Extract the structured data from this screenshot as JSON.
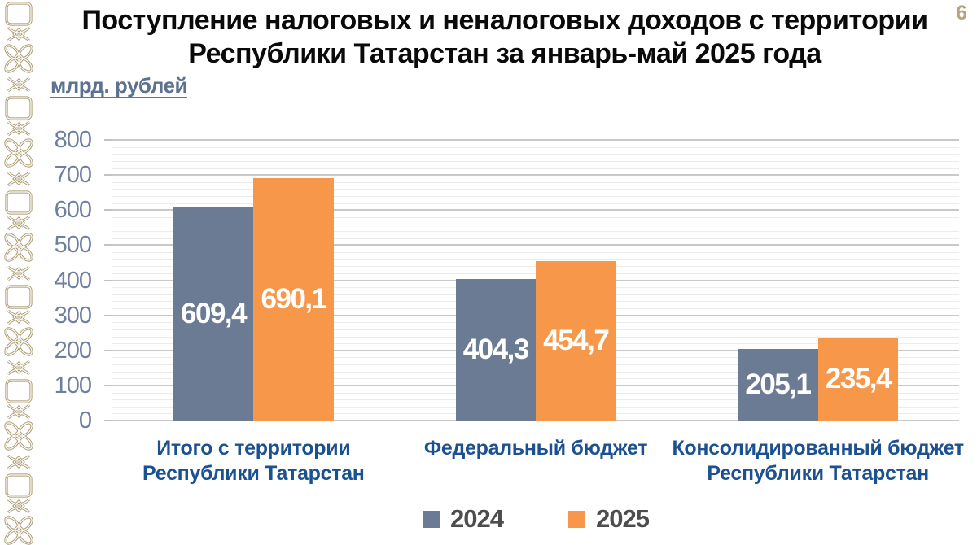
{
  "page": {
    "number": "6"
  },
  "title": {
    "line1": "Поступление налоговых и неналоговых доходов с территории",
    "line2": "Республики Татарстан за январь-май 2025 года"
  },
  "chart_data": {
    "type": "bar",
    "title": "Поступление налоговых и неналоговых доходов с территории Республики Татарстан за январь-май 2025 года",
    "ylabel": "млрд. рублей",
    "xlabel": "",
    "ylim": [
      0,
      800
    ],
    "ytick_step": 100,
    "minor_step": 20,
    "grid": true,
    "legend_position": "bottom",
    "categories": [
      [
        "Итого с территории",
        "Республики Татарстан"
      ],
      [
        "Федеральный бюджет"
      ],
      [
        "Консолидированный бюджет",
        "Республики Татарстан"
      ]
    ],
    "series": [
      {
        "name": "2024",
        "color": "#6b7b94",
        "values": [
          609.4,
          404.3,
          205.1
        ],
        "labels": [
          "609,4",
          "404,3",
          "205,1"
        ]
      },
      {
        "name": "2025",
        "color": "#f7974a",
        "values": [
          690.1,
          454.7,
          235.4
        ],
        "labels": [
          "690,1",
          "454,7",
          "235,4"
        ]
      }
    ]
  },
  "colors": {
    "title_text": "#0a0a0a",
    "units_label": "#5d7191",
    "axis_labels": "#6e7f9f",
    "category_labels": "#1c5191",
    "legend_text": "#4d4d4d",
    "page_number": "#b5a57c",
    "ornament": "#ac9c72",
    "gridline_major": "#c9c9c9",
    "gridline_minor": "#ececec",
    "bar_2024": "#6b7b94",
    "bar_2025": "#f7974a"
  }
}
